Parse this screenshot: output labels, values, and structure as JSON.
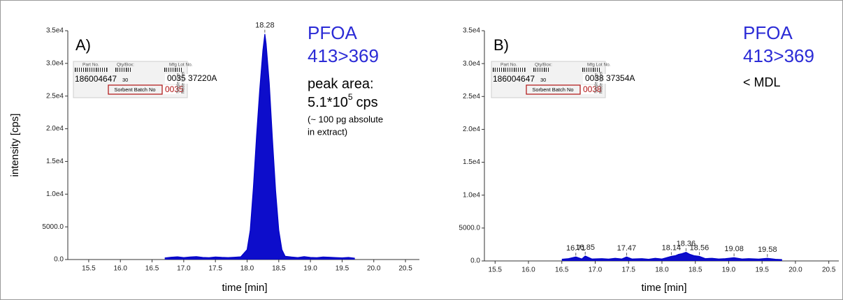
{
  "chart_data": [
    {
      "type": "area",
      "panel_label": "A)",
      "title": "PFOA",
      "subtitle": "413>369",
      "peak_area_label": "peak area:",
      "peak_area": {
        "mantissa": "5.1*10",
        "exponent": "5",
        "unit": "cps"
      },
      "note": [
        "(~ 100 pg absolute",
        "in extract)"
      ],
      "ylabel": "intensity [cps]",
      "xlabel": "time [min]",
      "color": "#0000c8",
      "x": [
        16.7,
        16.8,
        16.9,
        17.0,
        17.1,
        17.2,
        17.3,
        17.4,
        17.5,
        17.6,
        17.7,
        17.8,
        17.9,
        18.0,
        18.05,
        18.1,
        18.15,
        18.2,
        18.25,
        18.28,
        18.3,
        18.35,
        18.4,
        18.45,
        18.5,
        18.55,
        18.6,
        18.7,
        18.8,
        18.9,
        19.0,
        19.1,
        19.2,
        19.3,
        19.4,
        19.5,
        19.6,
        19.7
      ],
      "values": [
        250,
        350,
        420,
        300,
        380,
        450,
        320,
        280,
        400,
        330,
        300,
        350,
        420,
        1500,
        4500,
        11000,
        19000,
        26000,
        32000,
        34500,
        33000,
        27000,
        18500,
        10500,
        4500,
        1500,
        500,
        380,
        300,
        450,
        320,
        280,
        400,
        350,
        300,
        260,
        320,
        200
      ],
      "peak_labels": [
        18.28
      ],
      "xlim": [
        15.17,
        20.72
      ],
      "ylim": [
        0,
        35000
      ],
      "xticks": [
        15.5,
        {
          "value": 16,
          "label": "16.0"
        },
        16.5,
        {
          "value": 17,
          "label": "17.0"
        },
        17.5,
        {
          "value": 18,
          "label": "18.0"
        },
        18.5,
        {
          "value": 19,
          "label": "19.0"
        },
        19.5,
        {
          "value": 20,
          "label": "20.0"
        },
        20.5
      ],
      "yticks": [
        {
          "value": 0,
          "label": "0.0"
        },
        {
          "value": 5000,
          "label": "5000.0"
        },
        {
          "value": 10000,
          "label": "1.0e4"
        },
        {
          "value": 15000,
          "label": "1.5e4"
        },
        {
          "value": 20000,
          "label": "2.0e4"
        },
        {
          "value": 25000,
          "label": "2.5e4"
        },
        {
          "value": 30000,
          "label": "3.0e4"
        },
        {
          "value": 35000,
          "label": "3.5e4"
        }
      ],
      "inset": {
        "part_label": "Part No.",
        "qty_label": "Qty/Box:",
        "lot_label": "Mfg Lot No.",
        "part": "186004647",
        "qty": "30",
        "lot": "0035 37220A",
        "batch_label": "Sorbent Batch No",
        "batch": "0035",
        "side1": "Single Use",
        "side2": "Made in Irel"
      }
    },
    {
      "type": "area",
      "panel_label": "B)",
      "title": "PFOA",
      "subtitle": "413>369",
      "result": "< MDL",
      "xlabel": "time [min]",
      "color": "#0000c8",
      "x": [
        16.5,
        16.6,
        16.71,
        16.8,
        16.85,
        16.95,
        17.1,
        17.2,
        17.3,
        17.4,
        17.47,
        17.55,
        17.7,
        17.8,
        17.9,
        18.0,
        18.14,
        18.2,
        18.25,
        18.3,
        18.36,
        18.42,
        18.48,
        18.56,
        18.65,
        18.75,
        18.85,
        18.95,
        19.08,
        19.2,
        19.3,
        19.45,
        19.58,
        19.7,
        19.8
      ],
      "values": [
        250,
        350,
        600,
        300,
        750,
        300,
        350,
        280,
        400,
        300,
        600,
        300,
        350,
        250,
        400,
        300,
        700,
        800,
        1000,
        1100,
        1300,
        1000,
        800,
        700,
        350,
        400,
        300,
        350,
        500,
        300,
        350,
        280,
        400,
        250,
        200
      ],
      "peak_labels": [
        16.71,
        16.85,
        17.47,
        18.14,
        18.36,
        18.56,
        19.08,
        19.58
      ],
      "xlim": [
        15.34,
        20.65
      ],
      "ylim": [
        0,
        35000
      ],
      "xticks": [
        15.5,
        {
          "value": 16,
          "label": "16.0"
        },
        16.5,
        {
          "value": 17,
          "label": "17.0"
        },
        17.5,
        {
          "value": 18,
          "label": "18.0"
        },
        18.5,
        {
          "value": 19,
          "label": "19.0"
        },
        19.5,
        {
          "value": 20,
          "label": "20.0"
        },
        20.5
      ],
      "yticks": [
        {
          "value": 0,
          "label": "0.0"
        },
        {
          "value": 5000,
          "label": "5000.0"
        },
        {
          "value": 10000,
          "label": "1.0e4"
        },
        {
          "value": 15000,
          "label": "1.5e4"
        },
        {
          "value": 20000,
          "label": "2.0e4"
        },
        {
          "value": 25000,
          "label": "2.5e4"
        },
        {
          "value": 30000,
          "label": "3.0e4"
        },
        {
          "value": 35000,
          "label": "3.5e4"
        }
      ],
      "inset": {
        "part_label": "Part No.",
        "qty_label": "Qty/Box:",
        "lot_label": "Mfg Lot No.",
        "part": "186004647",
        "qty": "30",
        "lot": "0038 37354A",
        "batch_label": "Sorbent Batch No",
        "batch": "0038",
        "side1": "Single Use",
        "side2": "Made in Irel"
      }
    }
  ]
}
